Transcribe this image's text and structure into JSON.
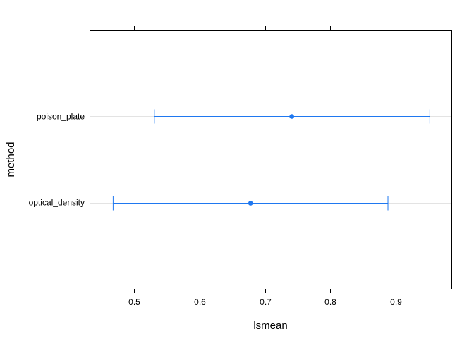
{
  "chart_data": {
    "type": "dotplot-errorbar",
    "xlabel": "lsmean",
    "ylabel": "method",
    "xlim": [
      0.432,
      0.985
    ],
    "x_ticks": [
      0.5,
      0.6,
      0.7,
      0.8,
      0.9
    ],
    "x_tick_labels": [
      "0.5",
      "0.6",
      "0.7",
      "0.8",
      "0.9"
    ],
    "categories": [
      "optical_density",
      "poison_plate"
    ],
    "estimates": [
      0.678,
      0.741
    ],
    "lower": [
      0.468,
      0.531
    ],
    "upper": [
      0.888,
      0.952
    ],
    "grid": "horizontal reference lines at categories",
    "colors": {
      "series": "#1f78f0",
      "reference_line": "#e3e3e3",
      "frame": "#000000",
      "text": "#000000"
    }
  }
}
